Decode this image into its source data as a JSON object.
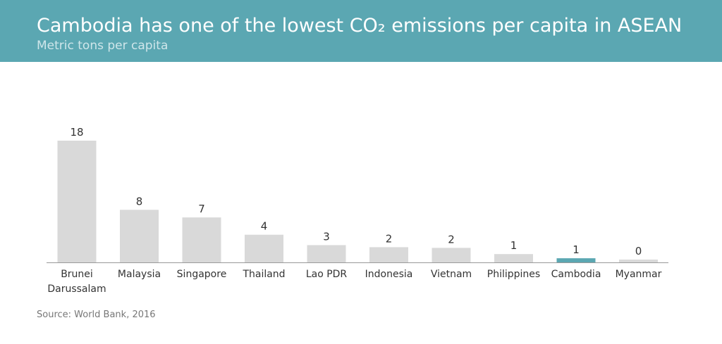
{
  "header": {
    "title": "Cambodia has one of the lowest CO₂ emissions per capita in ASEAN",
    "subtitle": "Metric tons per capita"
  },
  "chart_data": {
    "type": "bar",
    "categories": [
      "Brunei Darussalam",
      "Malaysia",
      "Singapore",
      "Thailand",
      "Lao PDR",
      "Indonesia",
      "Vietnam",
      "Philippines",
      "Cambodia",
      "Myanmar"
    ],
    "values": [
      17.6,
      7.6,
      6.5,
      4.0,
      2.5,
      2.2,
      2.1,
      1.2,
      0.6,
      0.4
    ],
    "labels": [
      "18",
      "8",
      "7",
      "4",
      "3",
      "2",
      "2",
      "1",
      "1",
      "0"
    ],
    "highlight": "Cambodia",
    "colors": {
      "default": "#d9d9d9",
      "highlight": "#5ba7b2"
    },
    "ylim": [
      0,
      18
    ]
  },
  "footer": {
    "source": "Source: World Bank, 2016"
  }
}
